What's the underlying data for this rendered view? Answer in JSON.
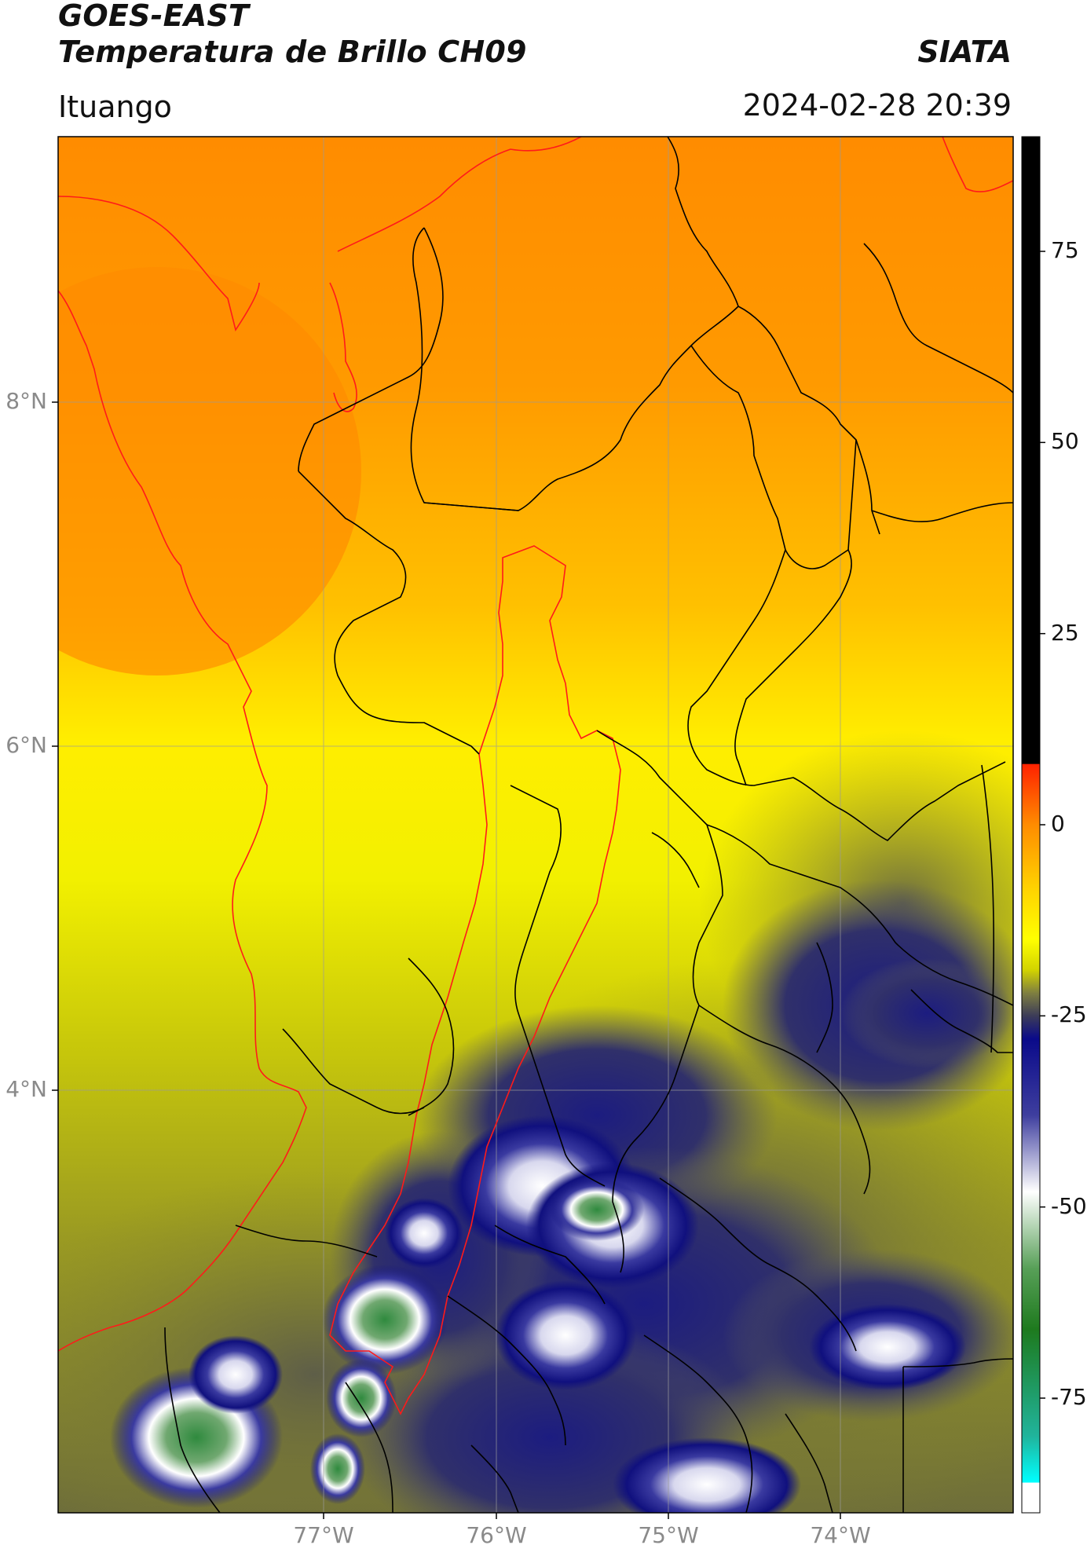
{
  "header": {
    "title_line1": "GOES-EAST",
    "title_line2": "Temperatura de Brillo CH09",
    "brand": "SIATA",
    "region": "Ituango",
    "timestamp": "2024-02-28 20:39"
  },
  "map": {
    "lat_ticks": [
      "8°N",
      "6°N",
      "4°N"
    ],
    "lon_ticks": [
      "77°W",
      "76°W",
      "75°W",
      "74°W"
    ],
    "boundary_colors": {
      "departments": "#000000",
      "coast_and_basin": "#ff1a1a"
    }
  },
  "colorbar": {
    "ticks": [
      "75",
      "50",
      "25",
      "0",
      "-25",
      "-50",
      "-75"
    ],
    "min": -90,
    "max": 90,
    "stops": [
      {
        "v": 90,
        "c": "#000000"
      },
      {
        "v": 8,
        "c": "#000000"
      },
      {
        "v": 7.9,
        "c": "#ff2200"
      },
      {
        "v": 0,
        "c": "#ff8c00"
      },
      {
        "v": -8,
        "c": "#ffd000"
      },
      {
        "v": -15,
        "c": "#ffff00"
      },
      {
        "v": -19,
        "c": "#d2d300"
      },
      {
        "v": -22,
        "c": "#7f7f40"
      },
      {
        "v": -25,
        "c": "#3c3c58"
      },
      {
        "v": -28,
        "c": "#0a0a8a"
      },
      {
        "v": -38,
        "c": "#3e3e9e"
      },
      {
        "v": -48,
        "c": "#ffffff"
      },
      {
        "v": -58,
        "c": "#58a058"
      },
      {
        "v": -66,
        "c": "#1e7a1e"
      },
      {
        "v": -80,
        "c": "#20b49c"
      },
      {
        "v": -86,
        "c": "#00ffff"
      },
      {
        "v": -86.1,
        "c": "#ffffff"
      },
      {
        "v": -90,
        "c": "#ffffff"
      }
    ]
  }
}
